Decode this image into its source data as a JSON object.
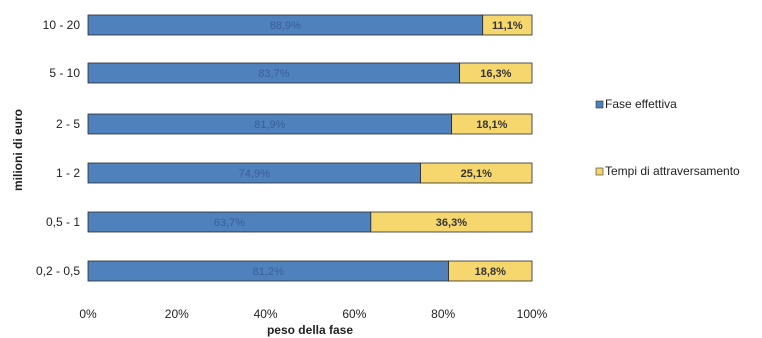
{
  "chart_data": {
    "type": "bar",
    "orientation": "horizontal",
    "stacked": true,
    "categories": [
      "10 - 20",
      "5 - 10",
      "2 - 5",
      "1 - 2",
      "0,5 - 1",
      "0,2 - 0,5"
    ],
    "series": [
      {
        "name": "Fase effettiva",
        "values": [
          88.9,
          83.7,
          81.9,
          74.9,
          63.7,
          81.2
        ],
        "labels": [
          "88,9%",
          "83,7%",
          "81,9%",
          "74,9%",
          "63,7%",
          "81,2%"
        ],
        "color": "#4f81bd"
      },
      {
        "name": "Tempi di attraversamento",
        "values": [
          11.1,
          16.3,
          18.1,
          25.1,
          36.3,
          18.8
        ],
        "labels": [
          "11,1%",
          "16,3%",
          "18,1%",
          "25,1%",
          "36,3%",
          "18,8%"
        ],
        "color": "#f5d76e"
      }
    ],
    "xlim": [
      0,
      100
    ],
    "xticks": [
      "0%",
      "20%",
      "40%",
      "60%",
      "80%",
      "100%"
    ],
    "xlabel": "peso della fase",
    "ylabel": "milioni di euro",
    "legend_position": "right",
    "grid": false
  }
}
